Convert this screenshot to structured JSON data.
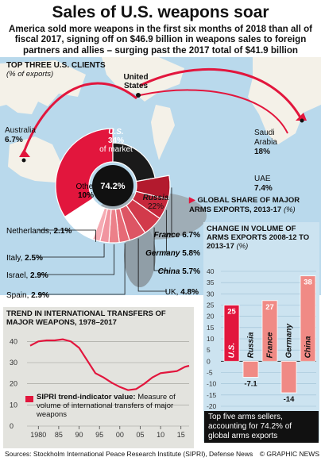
{
  "title": "Sales of U.S. weapons soar",
  "subtitle": "America sold more weapons in the first six months of 2018 than all of fiscal 2017, signing off on $46.9 billion in weapons sales to foreign partners and allies – surging past the 2017 total of $41.9 billion",
  "top_clients": {
    "title": "Top Three U.S. Clients",
    "note": "(% of exports)",
    "origin_label": "United States",
    "items": [
      {
        "name": "Australia",
        "value": "6.7%"
      },
      {
        "name": "Saudi Arabia",
        "value": "18%"
      },
      {
        "name": "UAE",
        "value": "7.4%"
      }
    ]
  },
  "share_panel": {
    "title": "Global Share of Major Arms Exports, 2013-17",
    "note": "(%)"
  },
  "change_panel": {
    "title": "Change in Volume of Arms Exports 2008-12 to 2013-17",
    "note": "(%)",
    "callout": "Top five arms sellers, accounting for 74.2% of global arms exports"
  },
  "trend_panel": {
    "title": "Trend in International Transfers of Major Weapons, 1978–2017",
    "legend_strong": "SIPRI trend-indicator value:",
    "legend_rest": "Measure of volume of international transfers of major weapons"
  },
  "footer": {
    "sources": "Sources: Stockholm International Peace Research Institute (SIPRI), Defense News",
    "credit": "© GRAPHIC NEWS"
  },
  "colors": {
    "accent": "#e2163d",
    "light_red": "#f08a85",
    "ocean": "#b9d9ec",
    "panel_blue": "#cce3f0",
    "panel_grey": "#e3e3de"
  },
  "chart_data": [
    {
      "type": "pie",
      "center_label": "74.2%",
      "slices": [
        {
          "name": "U.S.",
          "value": 34,
          "label": "34% of market"
        },
        {
          "name": "Russia",
          "value": 22
        },
        {
          "name": "France",
          "value": 6.7
        },
        {
          "name": "Germany",
          "value": 5.8
        },
        {
          "name": "China",
          "value": 5.7
        },
        {
          "name": "UK",
          "value": 4.8
        },
        {
          "name": "Spain",
          "value": 2.9
        },
        {
          "name": "Israel",
          "value": 2.9
        },
        {
          "name": "Italy",
          "value": 2.5
        },
        {
          "name": "Netherlands",
          "value": 2.1
        },
        {
          "name": "Other",
          "value": 10
        }
      ]
    },
    {
      "type": "bar",
      "categories": [
        "U.S.",
        "Russia",
        "France",
        "Germany",
        "China"
      ],
      "values": [
        25,
        -7.1,
        27,
        -14,
        38
      ],
      "ylim": [
        -20,
        40
      ],
      "yticks": [
        -20,
        -15,
        -10,
        -5,
        0,
        5,
        10,
        15,
        20,
        25,
        30,
        35,
        40
      ]
    },
    {
      "type": "line",
      "x": [
        1978,
        1980,
        1982,
        1984,
        1986,
        1988,
        1990,
        1992,
        1994,
        1996,
        1998,
        2000,
        2002,
        2004,
        2006,
        2008,
        2010,
        2012,
        2014,
        2016,
        2017
      ],
      "y": [
        38,
        40,
        40.5,
        40.5,
        41,
        40,
        37,
        31,
        25,
        23,
        20.5,
        18.5,
        17,
        17.5,
        20,
        23,
        25,
        25.5,
        26,
        28,
        28.5
      ],
      "ylim": [
        0,
        45
      ],
      "yticks": [
        0,
        10,
        20,
        30,
        40
      ],
      "xticks": [
        "1980",
        "85",
        "90",
        "95",
        "00",
        "05",
        "10",
        "15"
      ],
      "xtick_values": [
        1980,
        1985,
        1990,
        1995,
        2000,
        2005,
        2010,
        2015
      ]
    }
  ]
}
